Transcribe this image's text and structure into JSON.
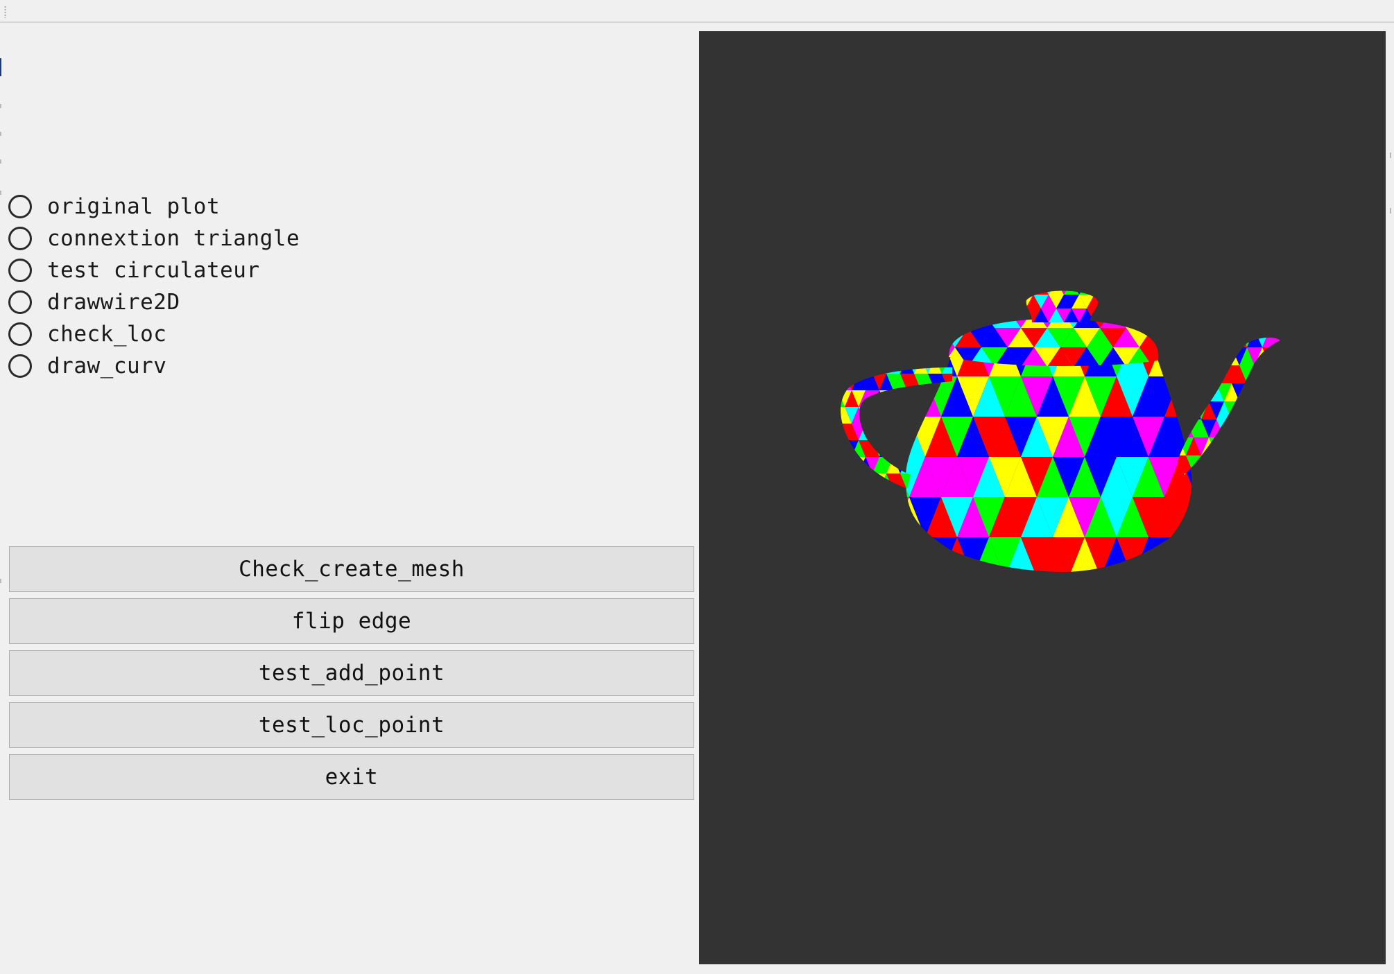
{
  "radio_options": [
    {
      "label": "original plot",
      "checked": false
    },
    {
      "label": "connextion triangle",
      "checked": false
    },
    {
      "label": "test circulateur",
      "checked": false
    },
    {
      "label": "drawwire2D",
      "checked": false
    },
    {
      "label": "check_loc",
      "checked": false
    },
    {
      "label": "draw_curv",
      "checked": false
    }
  ],
  "buttons": [
    {
      "label": "Check_create_mesh"
    },
    {
      "label": "flip edge"
    },
    {
      "label": "test_add_point"
    },
    {
      "label": "test_loc_point"
    },
    {
      "label": "exit"
    }
  ],
  "viewport": {
    "background": "#333333",
    "model": "teapot-mesh",
    "face_colors": [
      "#ff0000",
      "#00ff00",
      "#0000ff",
      "#ffff00",
      "#00ffff",
      "#ff00ff"
    ]
  },
  "colors": {
    "window_bg": "#f0f0f0",
    "button_bg": "#e1e1e1",
    "button_border": "#adadad"
  }
}
